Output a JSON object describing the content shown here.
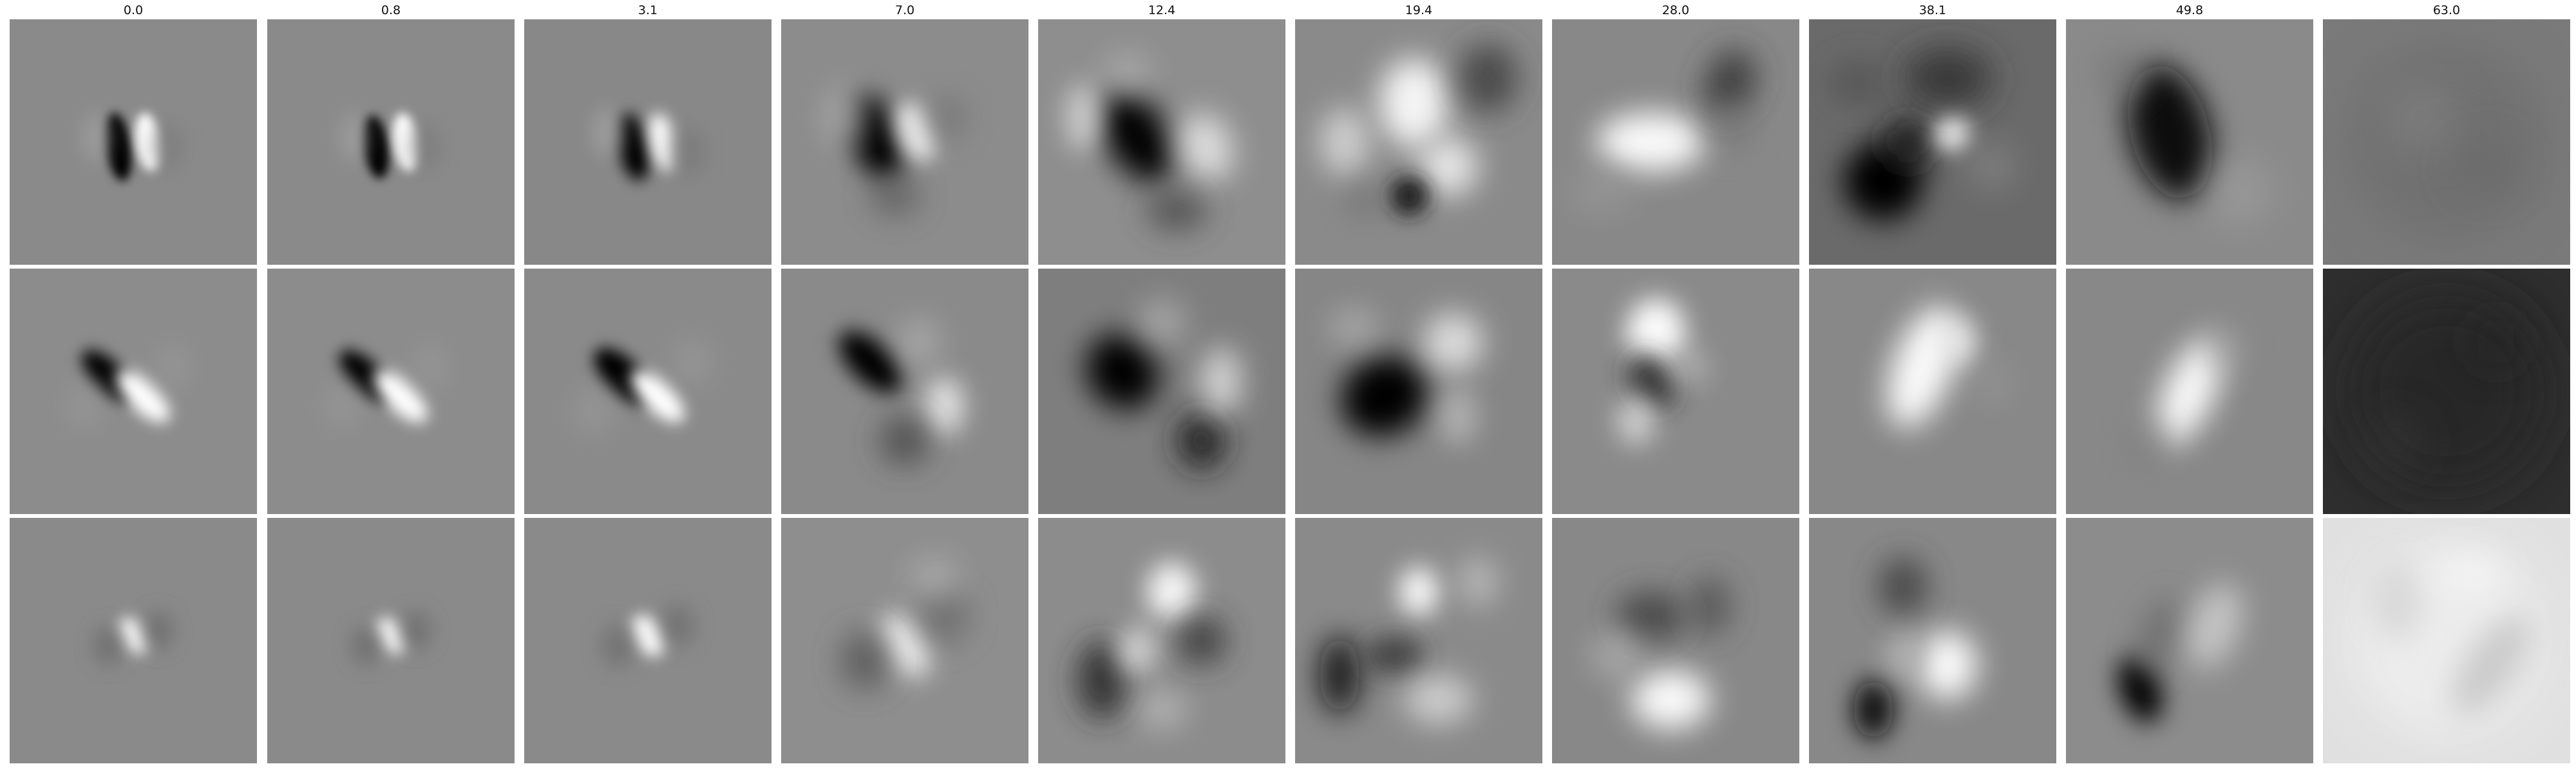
{
  "figure": {
    "columns": [
      "0.0",
      "0.8",
      "3.1",
      "7.0",
      "12.4",
      "19.4",
      "28.0",
      "38.1",
      "49.8",
      "63.0"
    ],
    "rows": 3,
    "colormap": "grayscale",
    "colors": {
      "background": "#ffffff",
      "neutral_gray": "#888888",
      "title_text": "#111111"
    }
  }
}
